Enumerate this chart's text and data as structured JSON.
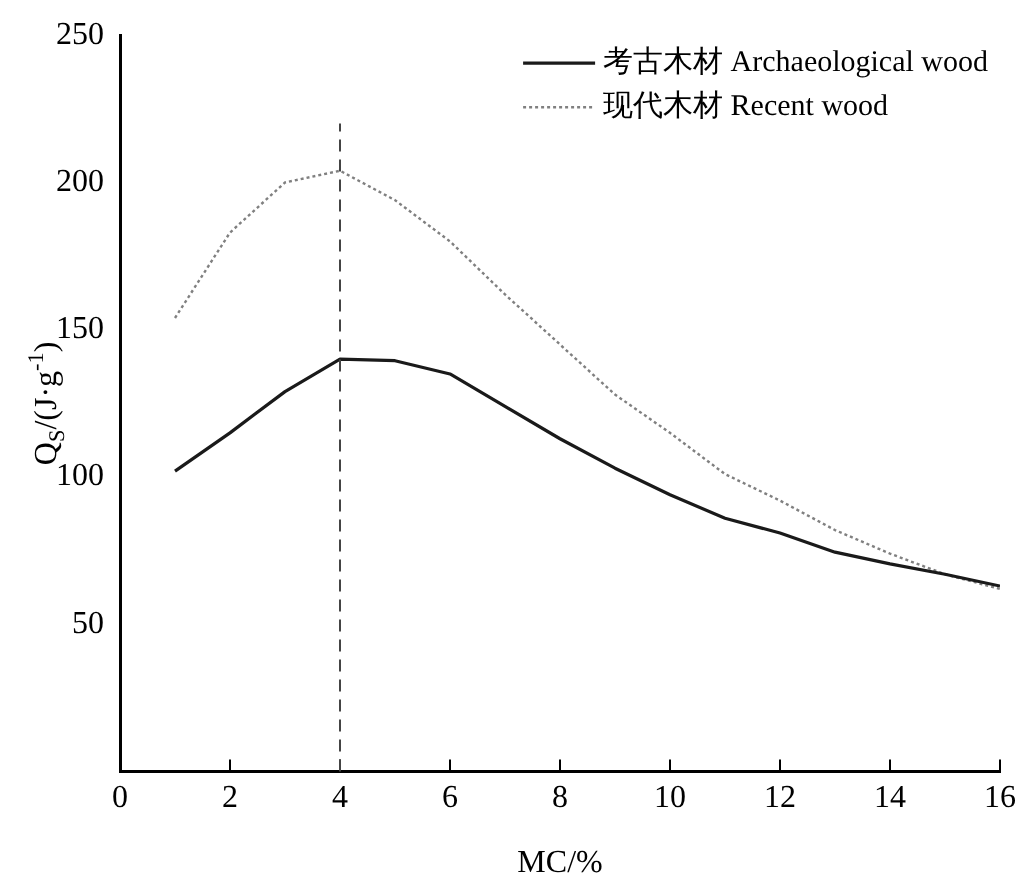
{
  "chart_data": {
    "type": "line",
    "xlabel": "MC/%",
    "ylabel": "Q$_{S}$/(J·g$^{-1}$)",
    "x": [
      1,
      2,
      3,
      4,
      5,
      6,
      7,
      8,
      9,
      10,
      11,
      12,
      13,
      14,
      15,
      16
    ],
    "series": [
      {
        "name": "考古木材 Archaeological wood",
        "color": "#1a1a1a",
        "line_style": "solid",
        "values": [
          102,
          115,
          129,
          140,
          139.5,
          135,
          124,
          113,
          103,
          94,
          86,
          81,
          74.5,
          70.5,
          67,
          63
        ]
      },
      {
        "name": "现代木材 Recent wood",
        "color": "#808080",
        "line_style": "dotted",
        "values": [
          154,
          183,
          200,
          204,
          194,
          180,
          162,
          145,
          128,
          115,
          101,
          92,
          82,
          74,
          67,
          62
        ]
      }
    ],
    "xlim": [
      0,
      16
    ],
    "xticks": [
      0,
      2,
      4,
      6,
      8,
      10,
      12,
      14,
      16
    ],
    "ylim": [
      0,
      250
    ],
    "yticks": [
      50,
      100,
      150,
      200,
      250
    ],
    "ref_lines": [
      {
        "axis": "x",
        "value": 4,
        "line_style": "dashed",
        "color": "#444444"
      }
    ],
    "grid": false,
    "legend": "top right",
    "marker": "none"
  }
}
